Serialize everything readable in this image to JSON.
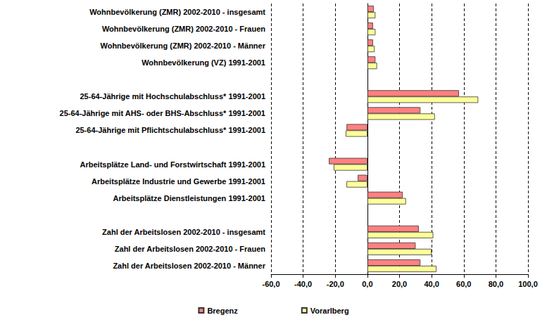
{
  "chart_data": {
    "type": "bar",
    "orientation": "horizontal",
    "categories": [
      "Wohnbevölkerung (ZMR) 2002-2010 - insgesamt",
      "Wohnbevölkerung (ZMR) 2002-2010 - Frauen",
      "Wohnbevölkerung (ZMR) 2002-2010 - Männer",
      "Wohnbevölkerung (VZ) 1991-2001",
      null,
      "25-64-Jährige mit Hochschulabschluss* 1991-2001",
      "25-64-Jährige mit AHS- oder BHS-Abschluss* 1991-2001",
      "25-64-Jährige mit Pflichtschulabschluss* 1991-2001",
      null,
      "Arbeitsplätze Land- und Forstwirtschaft 1991-2001",
      "Arbeitsplätze Industrie und Gewerbe 1991-2001",
      "Arbeitsplätze Dienstleistungen 1991-2001",
      null,
      "Zahl der Arbeitslosen 2002-2010 - insgesamt",
      "Zahl der Arbeitslosen 2002-2010 - Frauen",
      "Zahl der Arbeitslosen 2002-2010 - Männer"
    ],
    "series": [
      {
        "name": "Bregenz",
        "color": "#ff8080",
        "values": [
          4,
          3.5,
          3.5,
          5,
          null,
          57,
          33,
          -13,
          null,
          -24,
          -6,
          22,
          null,
          32,
          30,
          33
        ]
      },
      {
        "name": "Vorarlberg",
        "color": "#ffff99",
        "values": [
          5,
          5,
          4.5,
          6,
          null,
          69,
          42,
          -13.5,
          null,
          -21,
          -13,
          24,
          null,
          41,
          40,
          43
        ]
      }
    ],
    "xlim": [
      -60,
      100
    ],
    "xticks": [
      {
        "value": -60,
        "label": "-60,0"
      },
      {
        "value": -40,
        "label": "-40,0"
      },
      {
        "value": -20,
        "label": "-20,0"
      },
      {
        "value": 0,
        "label": "0,0"
      },
      {
        "value": 20,
        "label": "20,0"
      },
      {
        "value": 40,
        "label": "40,0"
      },
      {
        "value": 60,
        "label": "60,0"
      },
      {
        "value": 80,
        "label": "80,0"
      },
      {
        "value": 100,
        "label": "100,0"
      }
    ],
    "grid": true,
    "legend": "bottom"
  }
}
